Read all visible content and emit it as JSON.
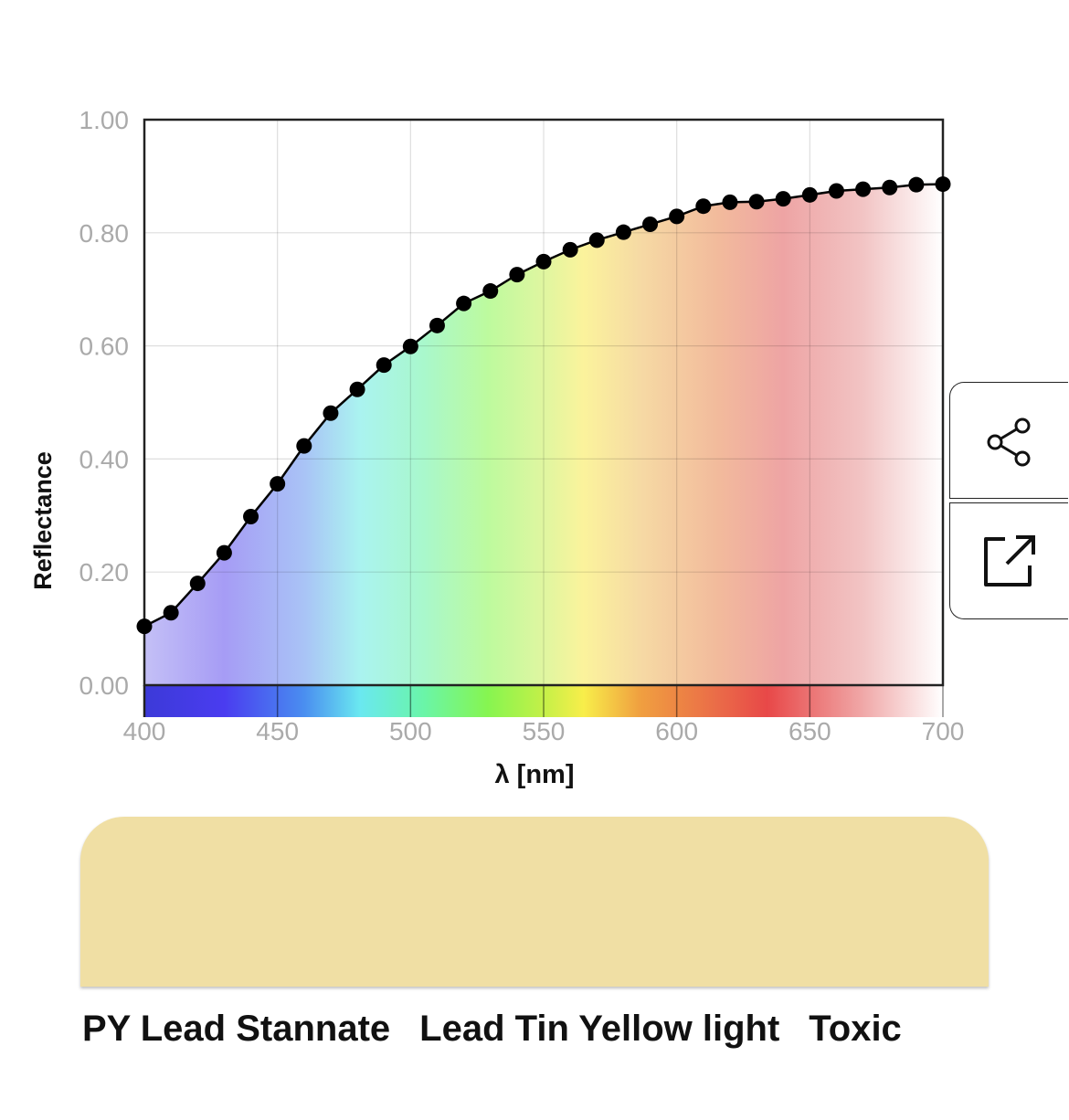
{
  "chart_data": {
    "type": "line",
    "xlabel": "λ [nm]",
    "ylabel": "Reflectance",
    "xlim": [
      400,
      700
    ],
    "ylim": [
      0,
      1
    ],
    "x_ticks": [
      "400",
      "450",
      "500",
      "550",
      "600",
      "650",
      "700"
    ],
    "y_ticks": [
      "0.00",
      "0.20",
      "0.40",
      "0.60",
      "0.80",
      "1.00"
    ],
    "grid": true,
    "background": "visible-spectrum gradient",
    "x": [
      400,
      410,
      420,
      430,
      440,
      450,
      460,
      470,
      480,
      490,
      500,
      510,
      520,
      530,
      540,
      550,
      560,
      570,
      580,
      590,
      600,
      610,
      620,
      630,
      640,
      650,
      660,
      670,
      680,
      690,
      700
    ],
    "series": [
      {
        "values": [
          0.104,
          0.128,
          0.18,
          0.234,
          0.298,
          0.356,
          0.423,
          0.481,
          0.523,
          0.566,
          0.599,
          0.636,
          0.675,
          0.697,
          0.726,
          0.749,
          0.77,
          0.787,
          0.801,
          0.815,
          0.829,
          0.847,
          0.854,
          0.855,
          0.86,
          0.867,
          0.874,
          0.877,
          0.88,
          0.885,
          0.886
        ]
      }
    ]
  },
  "swatch": {
    "color": "#f0dfa4"
  },
  "pigment": {
    "code": "PY Lead Stannate",
    "name": "Lead Tin Yellow light",
    "toxicity": "Toxic"
  },
  "actions": {
    "share_icon": "share-icon",
    "open_icon": "external-link-icon"
  }
}
